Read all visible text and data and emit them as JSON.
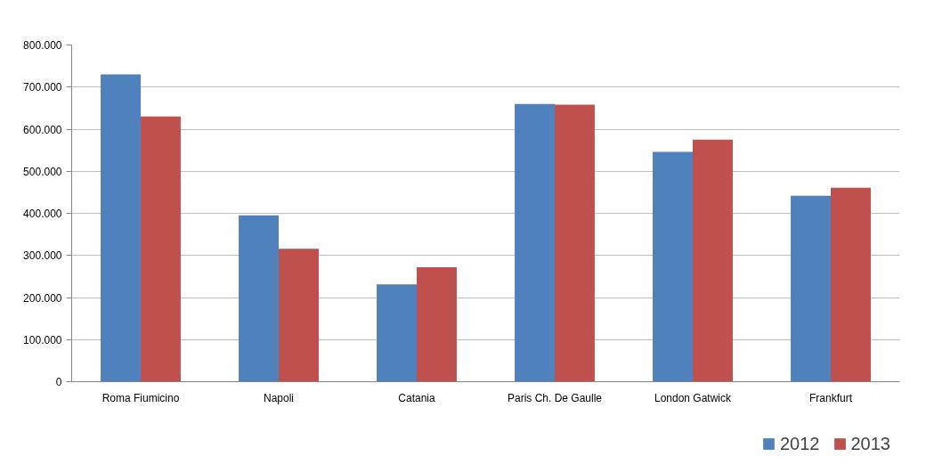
{
  "chart_data": {
    "type": "bar",
    "categories": [
      "Roma Fiumicino",
      "Napoli",
      "Catania",
      "Paris Ch. De Gaulle",
      "London Gatwick",
      "Frankfurt"
    ],
    "series": [
      {
        "name": "2012",
        "color": "#4f81bd",
        "values": [
          730000,
          395000,
          231000,
          660000,
          546000,
          442000
        ]
      },
      {
        "name": "2013",
        "color": "#c0504d",
        "values": [
          630000,
          316000,
          272000,
          658000,
          575000,
          461000
        ]
      }
    ],
    "ylim": [
      0,
      800000
    ],
    "yticks": [
      {
        "value": 0,
        "label": "0"
      },
      {
        "value": 100000,
        "label": "100.000"
      },
      {
        "value": 200000,
        "label": "200.000"
      },
      {
        "value": 300000,
        "label": "300.000"
      },
      {
        "value": 400000,
        "label": "400.000"
      },
      {
        "value": 500000,
        "label": "500.000"
      },
      {
        "value": 600000,
        "label": "600.000"
      },
      {
        "value": 700000,
        "label": "700.000"
      },
      {
        "value": 800000,
        "label": "800.000"
      }
    ],
    "grid": "y",
    "legend": "bottom"
  }
}
